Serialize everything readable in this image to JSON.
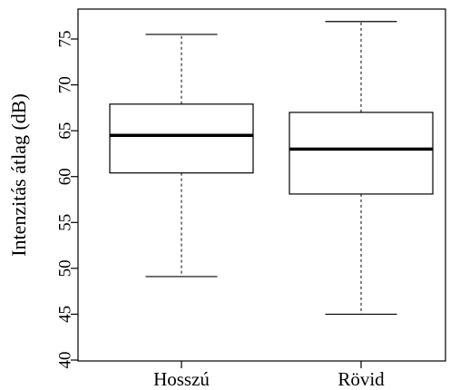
{
  "chart_data": {
    "type": "boxplot",
    "title": "",
    "xlabel": "",
    "ylabel": "Intenzitás átlag (dB)",
    "ylim": [
      40,
      78
    ],
    "yticks": [
      40,
      45,
      50,
      55,
      60,
      65,
      70,
      75
    ],
    "grid": false,
    "legend": "none",
    "categories": [
      "Hosszú",
      "Rövid"
    ],
    "boxes": [
      {
        "category": "Hosszú",
        "whisker_low": 49.1,
        "q1": 60.4,
        "median": 64.5,
        "q3": 67.9,
        "whisker_high": 75.5
      },
      {
        "category": "Rövid",
        "whisker_low": 45.0,
        "q1": 58.1,
        "median": 63.0,
        "q3": 67.0,
        "whisker_high": 76.9
      }
    ],
    "colors": {
      "box_fill": "#ffffff",
      "stroke": "#000000"
    }
  }
}
